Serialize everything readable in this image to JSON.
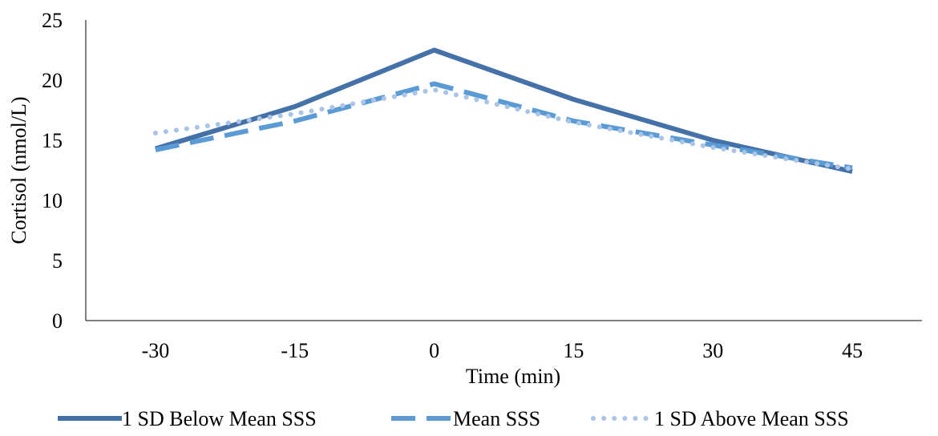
{
  "chart_data": {
    "type": "line",
    "title": "",
    "xlabel": "Time (min)",
    "ylabel": "Cortisol (nmol/L)",
    "x": [
      -30,
      -15,
      0,
      15,
      30,
      45
    ],
    "x_tick_labels": [
      "-30",
      "-15",
      "0",
      "15",
      "30",
      "45"
    ],
    "ylim": [
      0,
      25
    ],
    "y_ticks": [
      0,
      5,
      10,
      15,
      20,
      25
    ],
    "y_tick_labels": [
      "0",
      "5",
      "10",
      "15",
      "20",
      "25"
    ],
    "grid": false,
    "legend_position": "bottom",
    "series": [
      {
        "name": "1 SD Below Mean SSS",
        "values": [
          14.3,
          17.8,
          22.5,
          18.4,
          15.0,
          12.4
        ],
        "color": "#4472a8",
        "style": "solid"
      },
      {
        "name": "Mean SSS",
        "values": [
          14.2,
          16.6,
          19.7,
          16.6,
          14.6,
          12.7
        ],
        "color": "#5b9bd5",
        "style": "dashed"
      },
      {
        "name": "1 SD Above Mean SSS",
        "values": [
          15.6,
          17.2,
          19.2,
          16.5,
          14.4,
          12.6
        ],
        "color": "#a9c4e6",
        "style": "dotted"
      }
    ]
  }
}
